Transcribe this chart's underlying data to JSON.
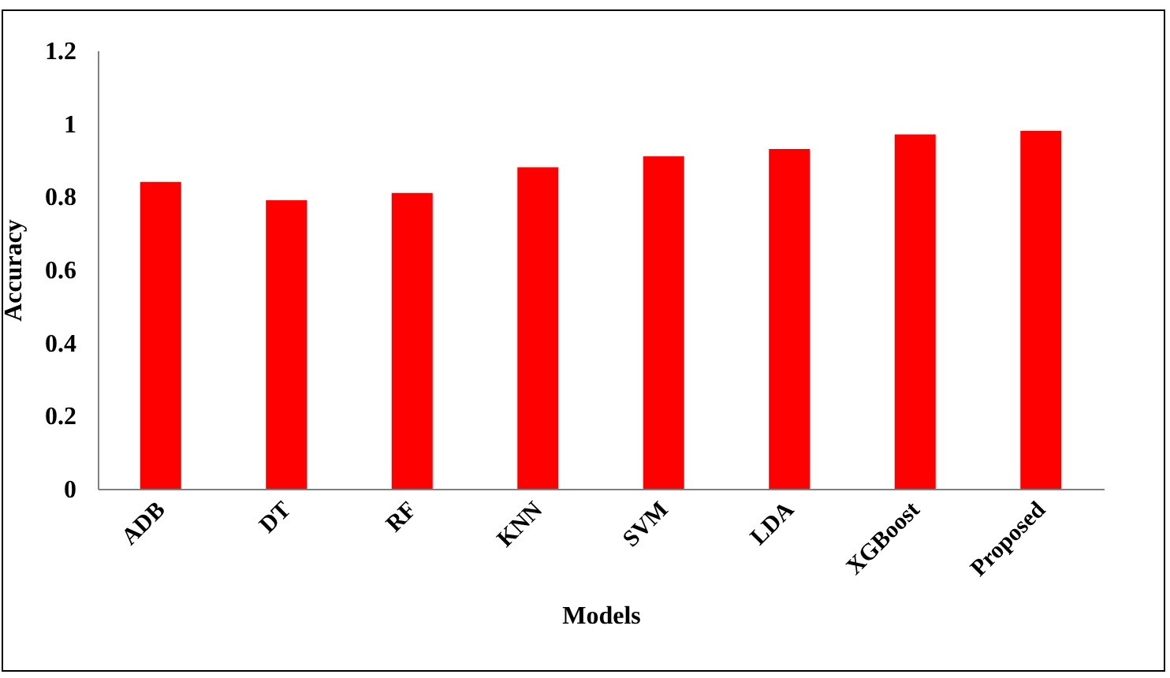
{
  "chart_data": {
    "type": "bar",
    "xlabel": "Models",
    "ylabel": "Accuracy",
    "categories": [
      "ADB",
      "DT",
      "RF",
      "KNN",
      "SVM",
      "LDA",
      "XGBoost",
      "Proposed"
    ],
    "values": [
      0.84,
      0.79,
      0.81,
      0.88,
      0.91,
      0.93,
      0.97,
      0.98
    ],
    "color": "#ff0000",
    "ylim": [
      0,
      1.2
    ],
    "yticks": [
      0,
      0.2,
      0.4,
      0.6,
      0.8,
      1,
      1.2
    ],
    "grid": false,
    "legend": false
  }
}
